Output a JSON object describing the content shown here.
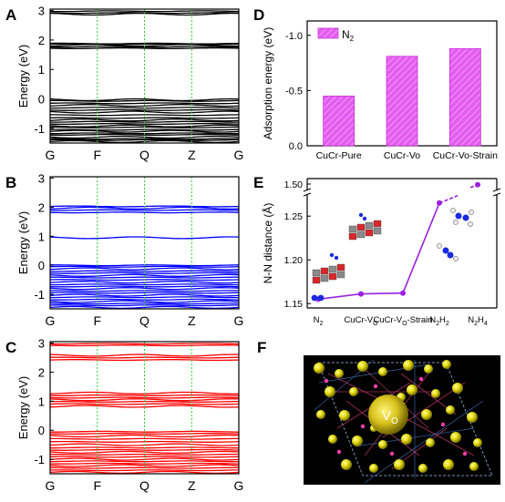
{
  "panels": {
    "A": "A",
    "B": "B",
    "C": "C",
    "D": "D",
    "E": "E",
    "F": "F"
  },
  "chart_data": [
    {
      "id": "A",
      "type": "line",
      "ylabel": "Energy (eV)",
      "ylim": [
        -1.5,
        3.05
      ],
      "yticks": [
        "-1",
        "0",
        "1",
        "2",
        "3"
      ],
      "kpoints": [
        "G",
        "F",
        "Q",
        "Z",
        "G"
      ],
      "color": "#000000",
      "bands": [
        -1.45,
        -1.4,
        -1.36,
        -1.3,
        -1.22,
        -1.17,
        -1.1,
        -1.05,
        -0.97,
        -0.92,
        -0.85,
        -0.78,
        -0.72,
        -0.65,
        -0.55,
        -0.45,
        -0.38,
        -0.3,
        -0.22,
        -0.15,
        -0.07,
        -0.03,
        1.72,
        1.77,
        1.82,
        1.86,
        1.88,
        2.88,
        2.92,
        2.98
      ]
    },
    {
      "id": "B",
      "type": "line",
      "ylabel": "Energy (eV)",
      "ylim": [
        -1.5,
        3.05
      ],
      "yticks": [
        "-1",
        "0",
        "1",
        "2",
        "3"
      ],
      "kpoints": [
        "G",
        "F",
        "Q",
        "Z",
        "G"
      ],
      "color": "#0000ff",
      "bands": [
        -1.45,
        -1.38,
        -1.32,
        -1.25,
        -1.18,
        -1.1,
        -1.03,
        -0.95,
        -0.88,
        -0.8,
        -0.73,
        -0.66,
        -0.58,
        -0.5,
        -0.42,
        -0.35,
        -0.27,
        -0.2,
        -0.12,
        -0.05,
        0.0,
        0.95,
        1.82,
        1.9,
        1.97,
        2.03
      ]
    },
    {
      "id": "C",
      "type": "line",
      "ylabel": "Energy (eV)",
      "ylim": [
        -1.5,
        3.05
      ],
      "yticks": [
        "-1",
        "0",
        "1",
        "2",
        "3"
      ],
      "kpoints": [
        "G",
        "F",
        "Q",
        "Z",
        "G"
      ],
      "color": "#ff0000",
      "bands": [
        -1.45,
        -1.38,
        -1.3,
        -1.22,
        -1.15,
        -1.07,
        -1.0,
        -0.92,
        -0.84,
        -0.76,
        -0.68,
        -0.6,
        -0.5,
        -0.4,
        -0.3,
        -0.2,
        -0.12,
        -0.05,
        0.82,
        0.9,
        0.98,
        1.05,
        1.12,
        1.2,
        1.28,
        2.42,
        2.5,
        2.58,
        2.92,
        2.98
      ]
    },
    {
      "id": "D",
      "type": "bar",
      "ylabel": "Adsorption energy (eV)",
      "categories": [
        "CuCr-Pure",
        "CuCr-Vo",
        "CuCr-Vo-Strain"
      ],
      "series": [
        {
          "name": "N",
          "name_sub": "2",
          "values": [
            -0.45,
            -0.81,
            -0.88
          ]
        }
      ],
      "yticks": [
        "-1.0",
        "-0.5",
        "0.0"
      ],
      "ylim": [
        0,
        -1.13
      ],
      "bar_color": "#dd44ee"
    },
    {
      "id": "E",
      "type": "line",
      "ylabel": "N-N distance (Å)",
      "categories": [
        {
          "main": "N",
          "sub": "2",
          "tail": ""
        },
        {
          "main": "CuCr-V",
          "sub": "O",
          "tail": ""
        },
        {
          "main": "CuCr-V",
          "sub": "O",
          "tail": "-Strain"
        },
        {
          "main": "N",
          "sub": "2",
          "tail": "H",
          "sub2": "2"
        },
        {
          "main": "N",
          "sub": "2",
          "tail": "H",
          "sub2": "4"
        }
      ],
      "values": [
        1.155,
        1.161,
        1.162,
        1.265,
        1.49
      ],
      "yticks": [
        "1.15",
        "1.20",
        "1.25",
        "1.50"
      ],
      "axis_break": true,
      "line_color": "#9a21de"
    },
    {
      "id": "F",
      "type": "other",
      "label_main": "V",
      "label_sub": "O"
    }
  ]
}
